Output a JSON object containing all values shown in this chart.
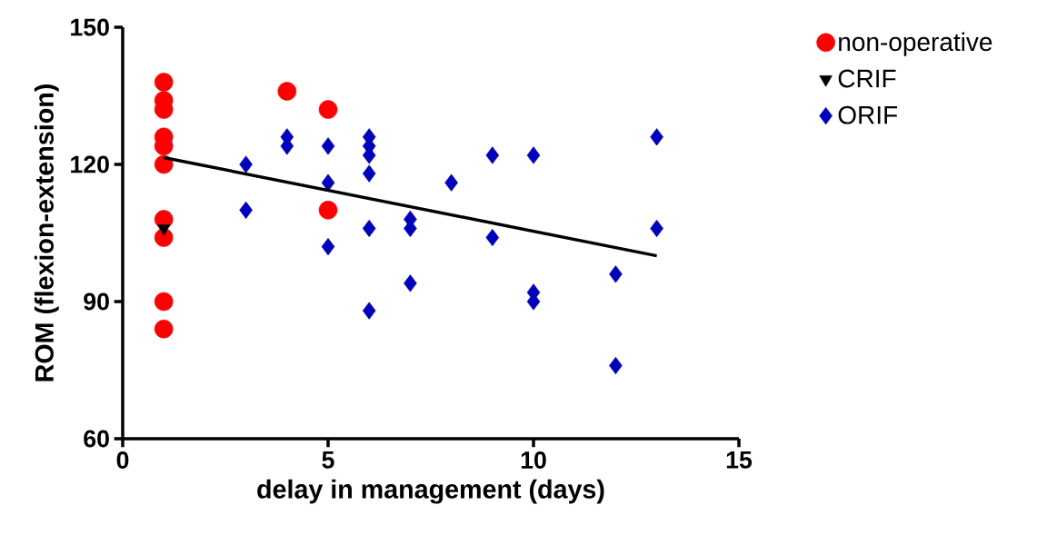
{
  "chart_data": {
    "type": "scatter",
    "xlabel": "delay in management (days)",
    "ylabel": "ROM (flexion-extension)",
    "xlim": [
      0,
      15
    ],
    "xticks": [
      0,
      5,
      10,
      15
    ],
    "ylim": [
      60,
      150
    ],
    "yticks": [
      60,
      90,
      120,
      150
    ],
    "grid": false,
    "legend": "top right",
    "series": [
      {
        "name": "non-operative",
        "color": "#ff0000",
        "marker": "circle",
        "x": [
          1,
          1,
          1,
          1,
          1,
          1,
          1,
          1,
          1,
          1,
          4,
          5,
          5
        ],
        "values": [
          138,
          134,
          132,
          126,
          124,
          120,
          108,
          104,
          90,
          84,
          136,
          132,
          110
        ]
      },
      {
        "name": "CRIF",
        "color": "#000000",
        "marker": "triangle",
        "x": [
          1
        ],
        "values": [
          106
        ]
      },
      {
        "name": "ORIF",
        "color": "#0000c0",
        "marker": "diamond",
        "x": [
          3,
          3,
          4,
          4,
          5,
          5,
          5,
          6,
          6,
          6,
          6,
          6,
          6,
          7,
          7,
          7,
          8,
          9,
          9,
          10,
          10,
          10,
          12,
          12,
          13,
          13
        ],
        "values": [
          120,
          110,
          126,
          124,
          124,
          116,
          102,
          126,
          124,
          122,
          118,
          106,
          88,
          108,
          106,
          94,
          116,
          122,
          104,
          122,
          92,
          90,
          96,
          76,
          126,
          106
        ]
      },
      {
        "type": "line",
        "color": "#000000",
        "marker": "none",
        "line_style": "solid",
        "x": [
          1,
          13
        ],
        "values": [
          121.5,
          100
        ]
      }
    ]
  }
}
